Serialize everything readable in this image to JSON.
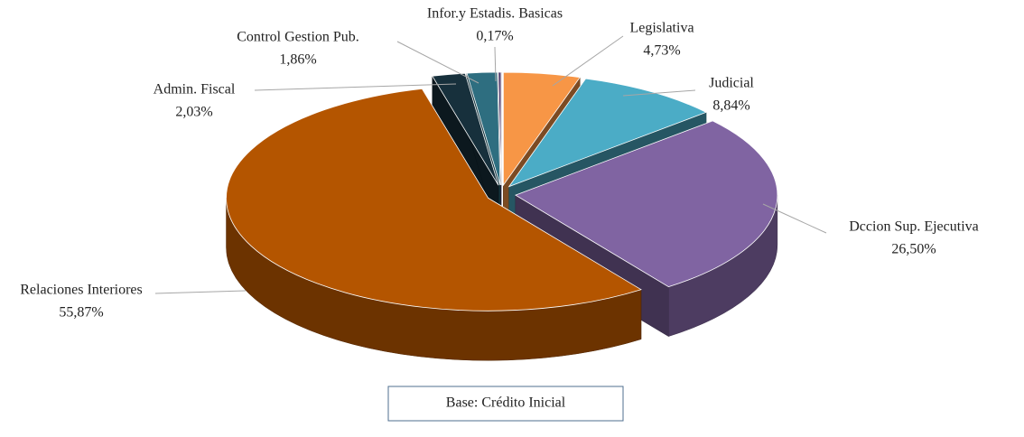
{
  "chart_data": {
    "type": "pie3d",
    "categories": [
      "Legislativa",
      "Judicial",
      "Dccion Sup. Ejecutiva",
      "Relaciones Interiores",
      "Admin. Fiscal",
      "Control Gestion Pub.",
      "Infor.y Estadis. Basicas"
    ],
    "values": [
      4.73,
      8.84,
      26.5,
      55.87,
      2.03,
      1.86,
      0.17
    ],
    "value_labels": [
      "4,73%",
      "8,84%",
      "26,50%",
      "55,87%",
      "2,03%",
      "1,86%",
      "0,17%"
    ],
    "colors": [
      "#f79646",
      "#4bacc6",
      "#8064a2",
      "#b45500",
      "#17303c",
      "#2e6e80",
      "#4f3a6b"
    ],
    "caption": "Base: Crédito Inicial"
  }
}
